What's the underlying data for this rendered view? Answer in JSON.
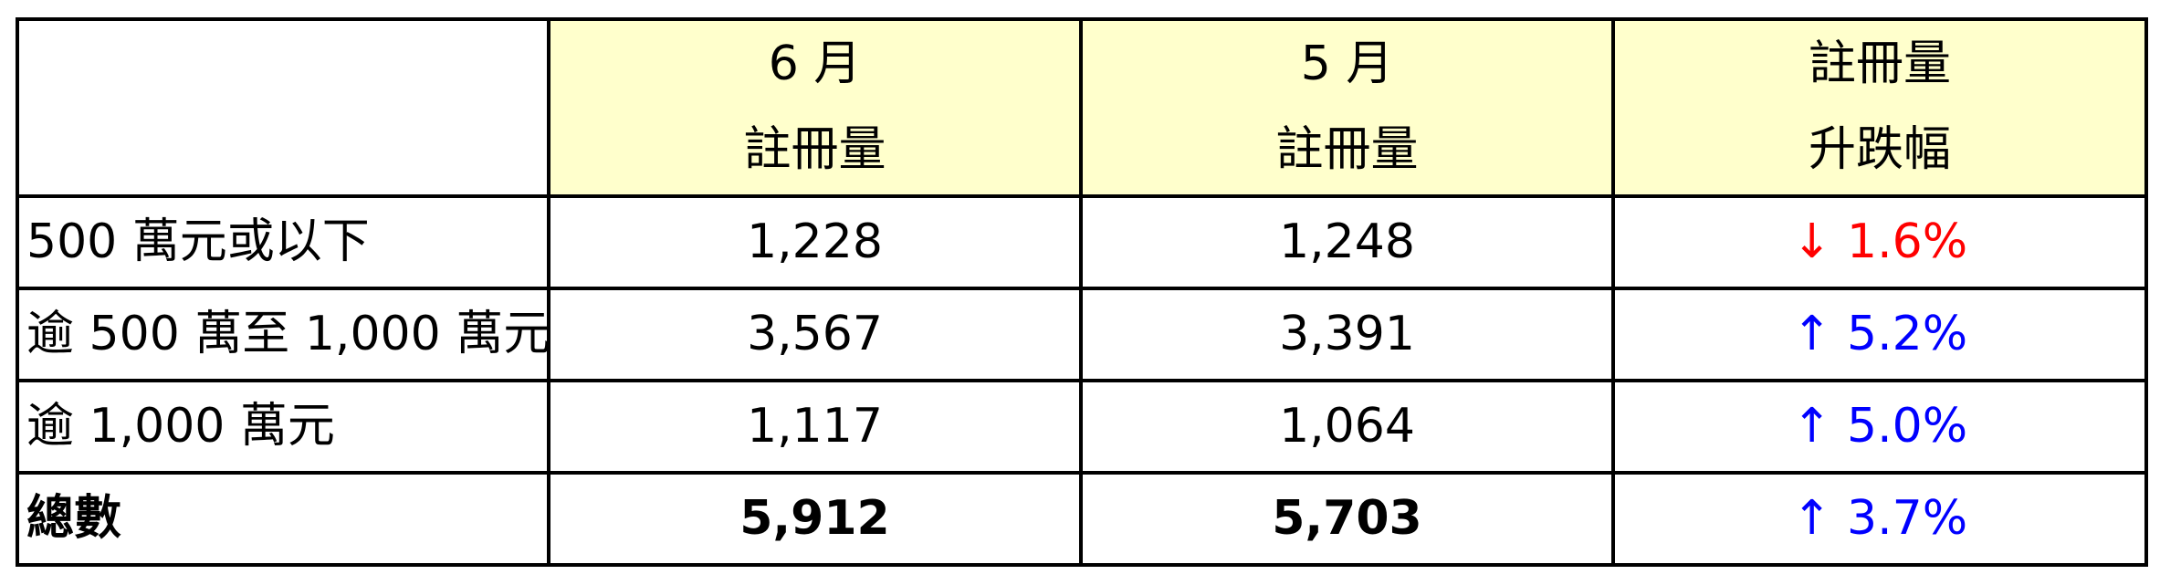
{
  "colors": {
    "header_bg": "#ffffcc",
    "up": "#0000ff",
    "down": "#ff0000"
  },
  "header": [
    {
      "line1": "",
      "line2": ""
    },
    {
      "line1": "6 月",
      "line2": "註冊量"
    },
    {
      "line1": "5 月",
      "line2": "註冊量"
    },
    {
      "line1": "註冊量",
      "line2": "升跌幅"
    }
  ],
  "rows": [
    {
      "label": "500 萬元或以下",
      "june": "1,228",
      "may": "1,248",
      "change": "↓ 1.6%",
      "direction": "down"
    },
    {
      "label": "逾 500 萬至 1,000 萬元",
      "june": "3,567",
      "may": "3,391",
      "change": "↑ 5.2%",
      "direction": "up"
    },
    {
      "label": "逾 1,000 萬元",
      "june": "1,117",
      "may": "1,064",
      "change": "↑ 5.0%",
      "direction": "up"
    },
    {
      "label": "總數",
      "june": "5,912",
      "may": "5,703",
      "change": "↑ 3.7%",
      "direction": "up"
    }
  ]
}
